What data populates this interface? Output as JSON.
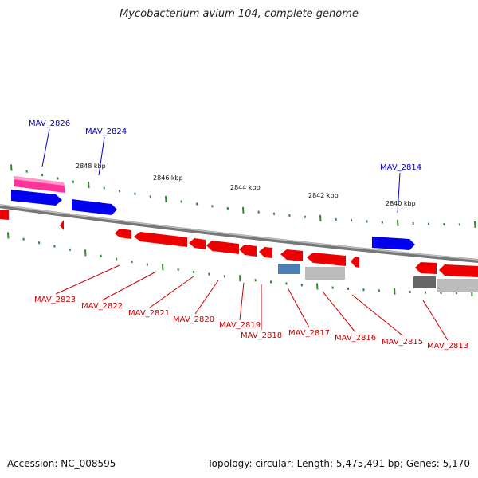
{
  "title": "Mycobacterium avium 104, complete genome",
  "footer": {
    "accession": "Accession: NC_008595",
    "stats": "Topology: circular; Length: 5,475,491 bp; Genes: 5,170"
  },
  "colors": {
    "backbone": "#888888",
    "tick": "#2e8b2e",
    "forward_gene": "#0000ff",
    "reverse_gene": "#ff0000",
    "pink_gene": "#ff3399",
    "steelblue_gene": "#4a7fb5",
    "gray_gene": "#bbbbbb",
    "darkgray_gene": "#666666",
    "upper_label": "#0000cc",
    "lower_label": "#cc0000"
  },
  "kbp_labels": [
    "2848 kbp",
    "2846 kbp",
    "2844 kbp",
    "2842 kbp",
    "2840 kbp"
  ],
  "upper_gene_labels": [
    "MAV_2826",
    "MAV_2824",
    "MAV_2814"
  ],
  "lower_gene_labels": [
    "MAV_2823",
    "MAV_2822",
    "MAV_2821",
    "MAV_2820",
    "MAV_2819",
    "MAV_2818",
    "MAV_2817",
    "MAV_2816",
    "MAV_2815",
    "MAV_2813"
  ]
}
